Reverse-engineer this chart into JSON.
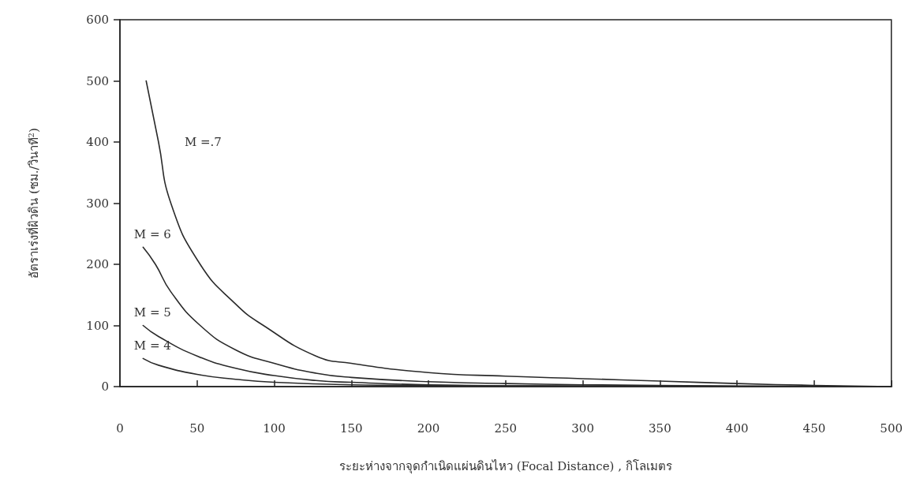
{
  "chart_data": {
    "type": "line",
    "xlabel": "ระยะห่างจากจุดกำเนิดแผ่นดินไหว (Focal Distance) , กิโลเมตร",
    "ylabel": "อัตราเร่งที่ผิวดิน (ซม./วินาที$^{2}$)",
    "xlim": [
      0,
      500
    ],
    "xticks": [
      0,
      50,
      100,
      150,
      200,
      250,
      300,
      350,
      400,
      450,
      500
    ],
    "ylim": [
      0,
      600
    ],
    "yticks": [
      0,
      100,
      200,
      300,
      400,
      500,
      600
    ],
    "grid": false,
    "legend": false,
    "marker": "none",
    "line_style": "solid",
    "series": [
      {
        "name": "M =.7",
        "color": "#2a2a2a",
        "x": [
          17,
          25,
          33,
          52,
          75,
          93,
          127,
          150,
          200,
          250,
          300,
          350,
          400,
          450,
          500
        ],
        "values": [
          500,
          400,
          300,
          200,
          135,
          100,
          50,
          38,
          23,
          17,
          13,
          9,
          5,
          2,
          0
        ]
      },
      {
        "name": "M = 6",
        "color": "#2a2a2a",
        "x": [
          15,
          23,
          33,
          52,
          75,
          100,
          127,
          150,
          200,
          250,
          300,
          400,
          500
        ],
        "values": [
          228,
          200,
          155,
          100,
          60,
          38,
          22,
          15,
          8,
          5,
          3,
          1,
          0
        ]
      },
      {
        "name": "M = 5",
        "color": "#2a2a2a",
        "x": [
          15,
          25,
          50,
          75,
          100,
          127,
          150,
          200,
          300,
          500
        ],
        "values": [
          100,
          82,
          50,
          30,
          18,
          10,
          7,
          3,
          1,
          0
        ]
      },
      {
        "name": "M = 4",
        "color": "#2a2a2a",
        "x": [
          15,
          25,
          50,
          75,
          100,
          150,
          200,
          300,
          500
        ],
        "values": [
          46,
          35,
          20,
          12,
          7,
          3,
          2,
          1,
          0
        ]
      }
    ]
  }
}
